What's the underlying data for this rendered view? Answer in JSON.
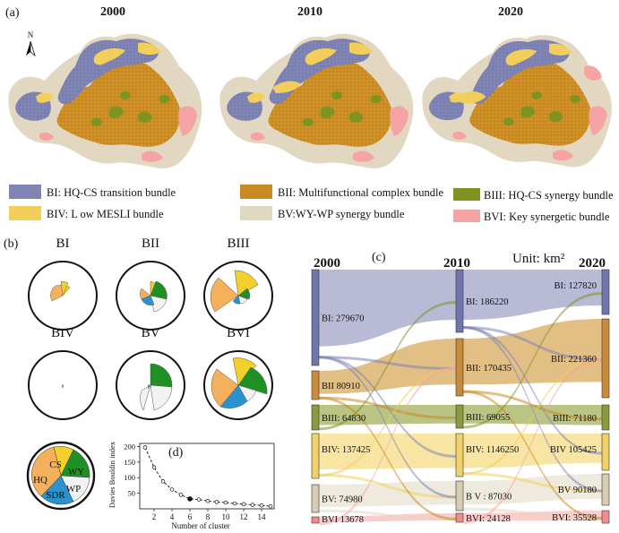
{
  "panel_a": {
    "label": "(a)",
    "years": [
      "2000",
      "2010",
      "2020"
    ],
    "north_symbol": "N",
    "legend": [
      {
        "key": "BI",
        "text": "BI: HQ-CS transition bundle",
        "color": "#7f84b5"
      },
      {
        "key": "BII",
        "text": "BII: Multifunctional complex bundle",
        "color": "#c98a21"
      },
      {
        "key": "BIII",
        "text": "BIII: HQ-CS synergy bundle",
        "color": "#7f9420"
      },
      {
        "key": "BIV",
        "text": "BIV: L ow MESLI bundle",
        "color": "#f2cf5a"
      },
      {
        "key": "BV",
        "text": "BV:WY-WP synergy bundle",
        "color": "#e2d8c2"
      },
      {
        "key": "BVI",
        "text": "BVI: Key synergetic bundle",
        "color": "#f5a3a3"
      }
    ]
  },
  "panel_b": {
    "label": "(b)",
    "bundle_titles": [
      "BI",
      "BII",
      "BIII",
      "BIV",
      "BV",
      "BVI"
    ],
    "service_colors": {
      "CS": "#f1d02c",
      "WY": "#1f9024",
      "WP": "#f2f2f2",
      "SDR": "#2a93cf",
      "HQ": "#f4b05a"
    },
    "key_labels": [
      "CS",
      "WY",
      "WP",
      "SDR",
      "HQ"
    ]
  },
  "panel_c": {
    "label": "(c)",
    "years": [
      "2000",
      "2010",
      "2020"
    ],
    "unit": "Unit: km²",
    "nodes_2000": [
      "BI: 279670",
      "BII 80910",
      "BIII: 64830",
      "BIV: 137425",
      "BV: 74980",
      "BVI 13678"
    ],
    "nodes_2010": [
      "BI: 186220",
      "BII: 170435",
      "BIII: 69055",
      "BIV: 1146250",
      "B V : 87030",
      "BVI: 24128"
    ],
    "nodes_2020": [
      "BI: 127820",
      "BII: 221360",
      "BIII: 71180",
      "BIV 105425",
      "BV 90180",
      "BVI: 35528"
    ]
  },
  "panel_d": {
    "label": "(d)",
    "chart_data": {
      "type": "line",
      "x": [
        1,
        2,
        3,
        4,
        5,
        6,
        7,
        8,
        9,
        10,
        11,
        12,
        13,
        14,
        15
      ],
      "values": [
        197,
        133,
        88,
        62,
        45,
        32,
        30,
        25,
        22,
        20,
        17,
        15,
        13,
        11,
        8
      ],
      "xlabel": "Number of cluster",
      "ylabel": "Davies Bouldin index",
      "xticks": [
        2,
        4,
        6,
        8,
        10,
        12,
        14
      ],
      "yticks": [
        50,
        100,
        150,
        200
      ],
      "ylim": [
        0,
        210
      ],
      "xlim": [
        0.4,
        15.4
      ],
      "highlight_x": 6
    }
  }
}
